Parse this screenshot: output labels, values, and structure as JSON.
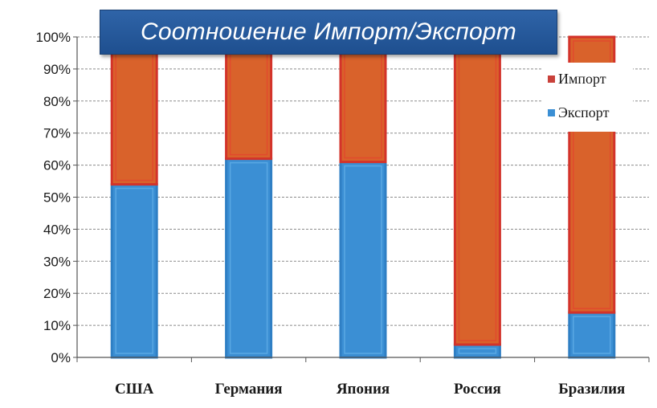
{
  "chart_data": {
    "type": "bar",
    "stacked": true,
    "percent": true,
    "title": "Соотношение Импорт/Экспорт",
    "categories": [
      "США",
      "Германия",
      "Япония",
      "Россия",
      "Бразилия"
    ],
    "series": [
      {
        "name": "Экспорт",
        "color": "#3b8fd4",
        "values": [
          54,
          62,
          61,
          4,
          14
        ]
      },
      {
        "name": "Импорт",
        "color": "#d9622b",
        "values": [
          46,
          38,
          39,
          96,
          86
        ]
      }
    ],
    "ylim": [
      0,
      100
    ],
    "yticks": [
      "0%",
      "10%",
      "20%",
      "30%",
      "40%",
      "50%",
      "60%",
      "70%",
      "80%",
      "90%",
      "100%"
    ],
    "grid": true,
    "legend": {
      "placement": "right",
      "entries": [
        {
          "label": "Импорт",
          "color": "#c9413a"
        },
        {
          "label": "Экспорт",
          "color": "#3b8fd4"
        }
      ]
    }
  }
}
